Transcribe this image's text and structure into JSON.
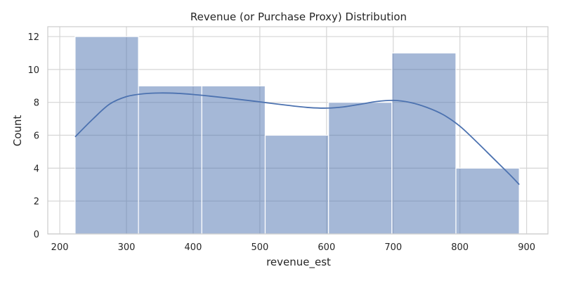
{
  "chart_data": {
    "type": "histogram",
    "title": "Revenue (or Purchase Proxy) Distribution",
    "xlabel": "revenue_est",
    "ylabel": "Count",
    "xlim": [
      182,
      932
    ],
    "ylim": [
      0,
      12.6
    ],
    "xticks": [
      200,
      300,
      400,
      500,
      600,
      700,
      800,
      900
    ],
    "yticks": [
      0,
      2,
      4,
      6,
      8,
      10,
      12
    ],
    "grid": true,
    "bins": [
      {
        "x0": 223,
        "x1": 318,
        "count": 12
      },
      {
        "x0": 318,
        "x1": 413,
        "count": 9
      },
      {
        "x0": 413,
        "x1": 508,
        "count": 9
      },
      {
        "x0": 508,
        "x1": 603,
        "count": 6
      },
      {
        "x0": 603,
        "x1": 698,
        "count": 8
      },
      {
        "x0": 698,
        "x1": 794,
        "count": 11
      },
      {
        "x0": 794,
        "x1": 889,
        "count": 4
      }
    ],
    "kde": {
      "x": [
        223,
        250,
        275,
        300,
        325,
        350,
        375,
        400,
        425,
        450,
        475,
        500,
        525,
        550,
        575,
        600,
        625,
        650,
        675,
        700,
        725,
        750,
        775,
        800,
        825,
        850,
        875,
        889
      ],
      "y": [
        5.9,
        7.0,
        7.9,
        8.35,
        8.52,
        8.57,
        8.55,
        8.48,
        8.38,
        8.27,
        8.15,
        8.03,
        7.9,
        7.78,
        7.68,
        7.65,
        7.72,
        7.88,
        8.05,
        8.12,
        8.0,
        7.7,
        7.25,
        6.55,
        5.6,
        4.6,
        3.6,
        3.0
      ]
    },
    "colors": {
      "bar_fill": "#4c72b0",
      "bar_edge": "#ffffff",
      "line": "#4c72b0"
    }
  }
}
